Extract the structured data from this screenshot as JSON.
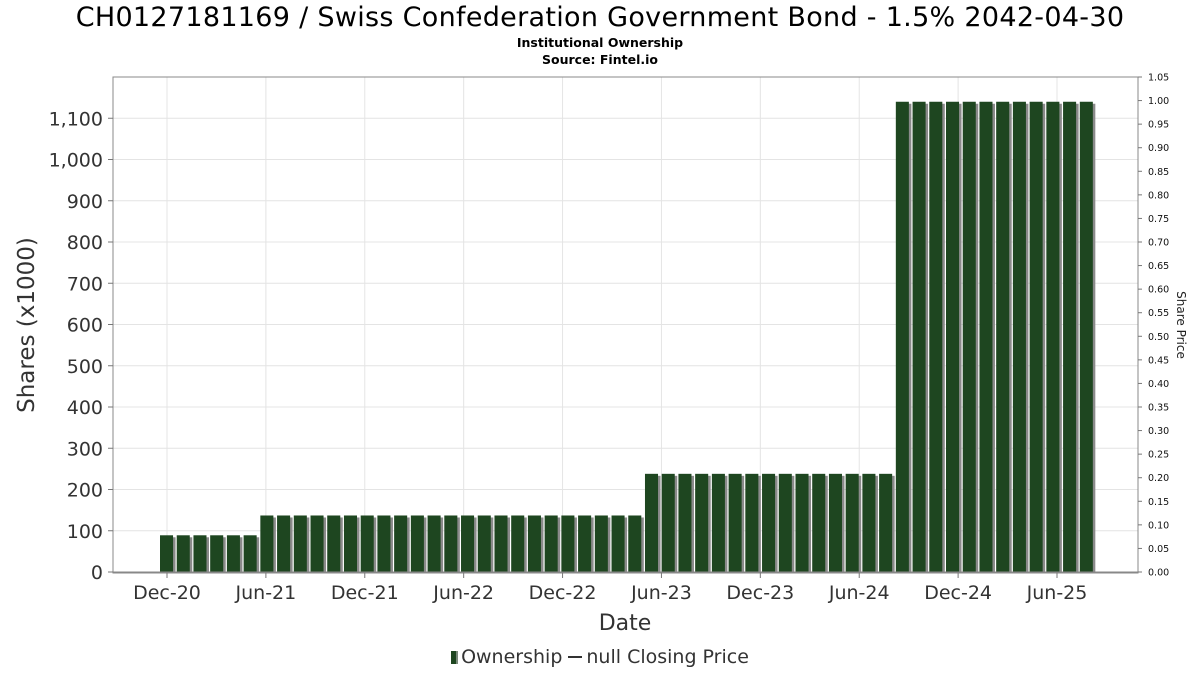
{
  "title": "CH0127181169 / Swiss Confederation Government Bond - 1.5% 2042-04-30",
  "subtitle_1": "Institutional Ownership",
  "subtitle_2": "Source: Fintel.io",
  "legend": {
    "ownership": "Ownership",
    "price": "null Closing Price"
  },
  "colors": {
    "bar": "#1e4620",
    "bar_shadow": "#8a8a8a",
    "grid": "#e4e4e4",
    "axis_text": "#333333"
  },
  "chart_data": {
    "type": "bar",
    "xlabel": "Date",
    "ylabel": "Shares (x1000)",
    "y2label": "Share Price",
    "ylim": [
      0,
      1200
    ],
    "y2lim": [
      0,
      1.05
    ],
    "yticks": [
      "0",
      "100",
      "200",
      "300",
      "400",
      "500",
      "600",
      "700",
      "800",
      "900",
      "1,000",
      "1,100"
    ],
    "y2ticks": [
      "0.00",
      "0.05",
      "0.10",
      "0.15",
      "0.20",
      "0.25",
      "0.30",
      "0.35",
      "0.40",
      "0.45",
      "0.50",
      "0.55",
      "0.60",
      "0.65",
      "0.70",
      "0.75",
      "0.80",
      "0.85",
      "0.90",
      "0.95",
      "1.00",
      "1.05"
    ],
    "xticks": [
      "Dec-20",
      "Jun-21",
      "Dec-21",
      "Jun-22",
      "Dec-22",
      "Jun-23",
      "Dec-23",
      "Jun-24",
      "Dec-24",
      "Jun-25"
    ],
    "grid": true,
    "legend_position": "bottom",
    "series": [
      {
        "name": "Ownership",
        "values": [
          89,
          89,
          89,
          89,
          89,
          89,
          137,
          137,
          137,
          137,
          137,
          137,
          137,
          137,
          137,
          137,
          137,
          137,
          137,
          137,
          137,
          137,
          137,
          137,
          137,
          137,
          137,
          137,
          137,
          238,
          238,
          238,
          238,
          238,
          238,
          238,
          238,
          238,
          238,
          238,
          238,
          238,
          238,
          238,
          1140,
          1140,
          1140,
          1140,
          1140,
          1140,
          1140,
          1140,
          1140,
          1140,
          1140,
          1140
        ]
      },
      {
        "name": "null Closing Price",
        "values": []
      }
    ]
  }
}
